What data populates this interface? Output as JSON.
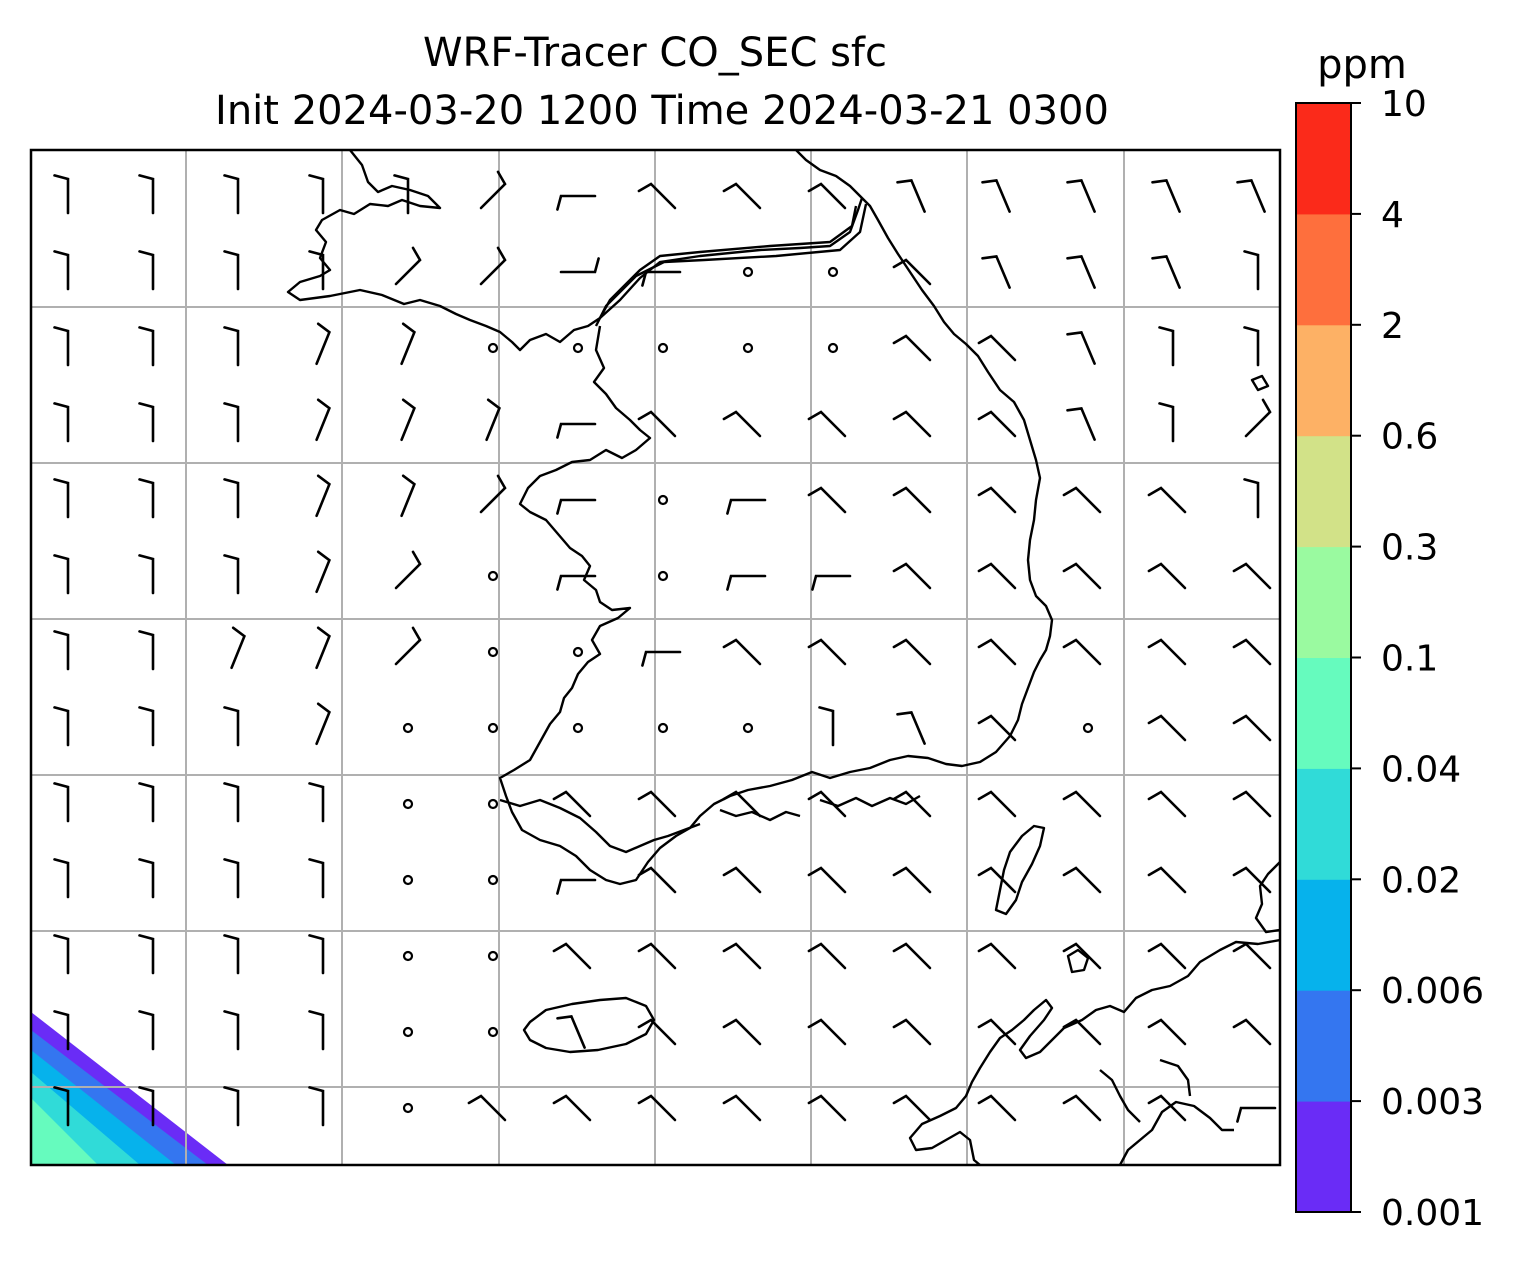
{
  "title": {
    "line1": "WRF-Tracer CO_SEC sfc",
    "line2": "Init 2024-03-20 1200 Time 2024-03-21 0300"
  },
  "colorbar": {
    "unit": "ppm",
    "levels": [
      "0.001",
      "0.003",
      "0.006",
      "0.02",
      "0.04",
      "0.1",
      "0.3",
      "0.6",
      "2",
      "4",
      "10"
    ],
    "colors": [
      "#6a2cf6",
      "#3476f0",
      "#06b2ec",
      "#30dbd8",
      "#66fbbe",
      "#9afaa0",
      "#d2e288",
      "#fdb165",
      "#fe6f3d",
      "#fb2a1a"
    ]
  },
  "map": {
    "grid_lines": "on",
    "grid_color": "#b0b0b0",
    "coastline_color": "#000000",
    "shaded_corner": "bottom-left",
    "shaded_corner_levels": [
      "0.001",
      "0.003",
      "0.006",
      "0.02",
      "0.04"
    ]
  },
  "wind_barbs": {
    "rows": [
      [
        "N",
        "N",
        "N",
        "N",
        "N",
        "NE",
        "W",
        "NW",
        "NW",
        "NW",
        "NNW",
        "NNW",
        "NNW",
        "NNW",
        "NNW"
      ],
      [
        "N",
        "N",
        "N",
        "N",
        "NE",
        "NE",
        "E",
        "W",
        "calm",
        "calm",
        "NW",
        "NNW",
        "NNW",
        "NNW",
        "N"
      ],
      [
        "N",
        "N",
        "N",
        "NNE",
        "NNE",
        "calm",
        "calm",
        "calm",
        "calm",
        "calm",
        "NW",
        "NW",
        "NNW",
        "N",
        "N"
      ],
      [
        "N",
        "N",
        "N",
        "NNE",
        "NNE",
        "NNE",
        "W",
        "NW",
        "NW",
        "NW",
        "NW",
        "NW",
        "NNW",
        "N",
        "NE"
      ],
      [
        "N",
        "N",
        "N",
        "NNE",
        "NNE",
        "NE",
        "W",
        "calm",
        "W",
        "NW",
        "NW",
        "NW",
        "NW",
        "NW",
        "N"
      ],
      [
        "N",
        "N",
        "N",
        "NNE",
        "NE",
        "calm",
        "W",
        "calm",
        "W",
        "W",
        "NW",
        "NW",
        "NW",
        "NW",
        "NW"
      ],
      [
        "N",
        "N",
        "NNE",
        "NNE",
        "NE",
        "calm",
        "calm",
        "W",
        "NW",
        "NW",
        "NW",
        "NW",
        "NW",
        "NW",
        "NW"
      ],
      [
        "N",
        "N",
        "N",
        "NNE",
        "calm",
        "calm",
        "calm",
        "calm",
        "calm",
        "N",
        "NNW",
        "NW",
        "calm",
        "NW",
        "NW"
      ],
      [
        "N",
        "N",
        "N",
        "N",
        "calm",
        "calm",
        "NW",
        "NW",
        "NW",
        "NW",
        "NW",
        "NW",
        "NW",
        "NW",
        "NW"
      ],
      [
        "N",
        "N",
        "N",
        "N",
        "calm",
        "calm",
        "W",
        "NW",
        "NW",
        "NW",
        "NW",
        "NW",
        "NW",
        "NW",
        "NW"
      ],
      [
        "N",
        "N",
        "N",
        "N",
        "calm",
        "calm",
        "NW",
        "NW",
        "NW",
        "NW",
        "NW",
        "NW",
        "NW",
        "NW",
        "NW"
      ],
      [
        "N",
        "N",
        "N",
        "N",
        "calm",
        "calm",
        "NNW",
        "NW",
        "NW",
        "NW",
        "NW",
        "NW",
        "NW",
        "NW",
        "NW"
      ],
      [
        "N",
        "N",
        "N",
        "N",
        "calm",
        "NW",
        "NW",
        "NW",
        "NW",
        "NW",
        "NW",
        "NW",
        "NW",
        "NW",
        "W"
      ]
    ]
  }
}
